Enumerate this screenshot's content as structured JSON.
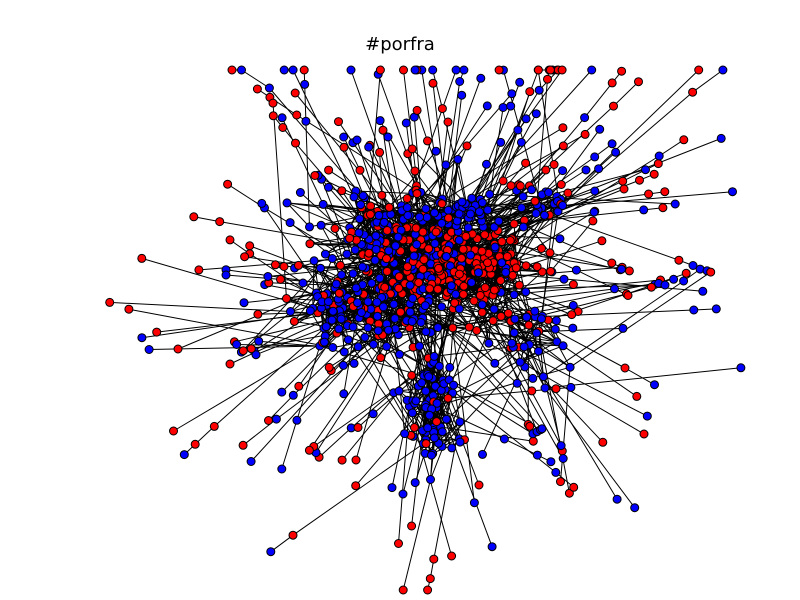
{
  "title": "#porfra",
  "graph": {
    "type": "network",
    "node_colors": {
      "red": "#ff0000",
      "blue": "#0000ff"
    },
    "edge_color": "#000000",
    "node_outline_color": "#000000",
    "background": "#ffffff"
  }
}
